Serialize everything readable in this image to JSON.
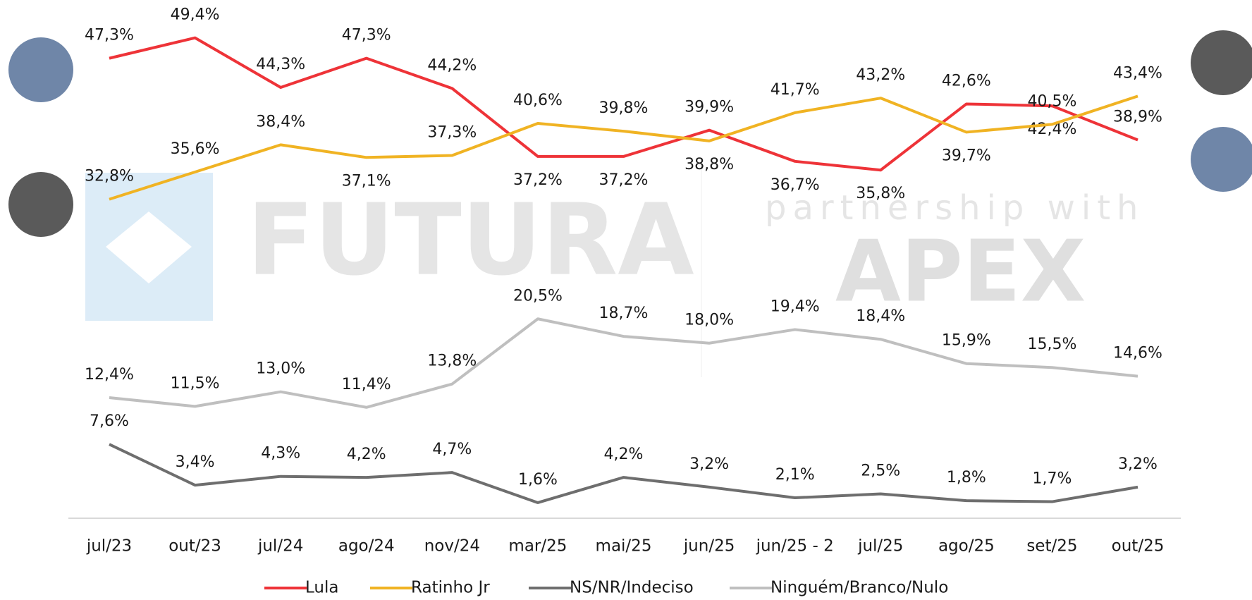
{
  "chart_data": {
    "type": "line",
    "categories": [
      "jul/23",
      "out/23",
      "jul/24",
      "ago/24",
      "nov/24",
      "mar/25",
      "mai/25",
      "jun/25",
      "jun/25 - 2",
      "jul/25",
      "ago/25",
      "set/25",
      "out/25"
    ],
    "ylim": [
      0,
      53
    ],
    "series": [
      {
        "name": "Lula",
        "color": "#ee3338",
        "values": [
          47.3,
          49.4,
          44.3,
          47.3,
          44.2,
          37.2,
          37.2,
          39.9,
          36.7,
          35.8,
          42.6,
          42.4,
          38.9
        ],
        "value_labels": [
          "47,3%",
          "49,4%",
          "44,3%",
          "47,3%",
          "44,2%",
          "37,2%",
          "37,2%",
          "39,9%",
          "36,7%",
          "35,8%",
          "42,6%",
          "42,4%",
          "38,9%"
        ]
      },
      {
        "name": "Ratinho Jr",
        "color": "#f0b323",
        "values": [
          32.8,
          35.6,
          38.4,
          37.1,
          37.3,
          40.6,
          39.8,
          38.8,
          41.7,
          43.2,
          39.7,
          40.5,
          43.4
        ],
        "value_labels": [
          "32,8%",
          "35,6%",
          "38,4%",
          "37,1%",
          "37,3%",
          "40,6%",
          "39,8%",
          "38,8%",
          "41,7%",
          "43,2%",
          "39,7%",
          "40,5%",
          "43,4%"
        ]
      },
      {
        "name": "NS/NR/Indeciso",
        "color": "#6e6e6e",
        "values": [
          7.6,
          3.4,
          4.3,
          4.2,
          4.7,
          1.6,
          4.2,
          3.2,
          2.1,
          2.5,
          1.8,
          1.7,
          3.2
        ],
        "value_labels": [
          "7,6%",
          "3,4%",
          "4,3%",
          "4,2%",
          "4,7%",
          "1,6%",
          "4,2%",
          "3,2%",
          "2,1%",
          "2,5%",
          "1,8%",
          "1,7%",
          "3,2%"
        ]
      },
      {
        "name": "Ninguém/Branco/Nulo",
        "color": "#bfbfbf",
        "values": [
          12.4,
          11.5,
          13.0,
          11.4,
          13.8,
          20.5,
          18.7,
          18.0,
          19.4,
          18.4,
          15.9,
          15.5,
          14.6
        ],
        "value_labels": [
          "12,4%",
          "11,5%",
          "13,0%",
          "11,4%",
          "13,8%",
          "20,5%",
          "18,7%",
          "18,0%",
          "19,4%",
          "18,4%",
          "15,9%",
          "15,5%",
          "14,6%"
        ]
      }
    ]
  },
  "watermark": {
    "brand": "FUTURA",
    "partner_line": "partnership with",
    "partner": "APEX"
  }
}
